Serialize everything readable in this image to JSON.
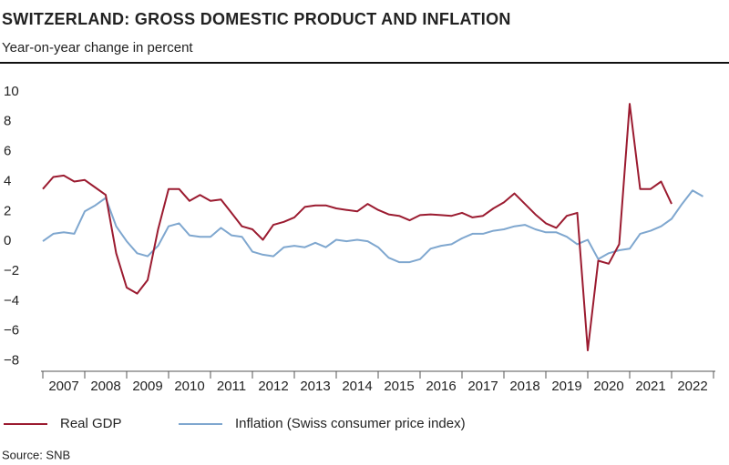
{
  "chart_data": {
    "type": "line",
    "title": "SWITZERLAND: GROSS DOMESTIC PRODUCT AND INFLATION",
    "subtitle": "Year-on-year change in percent",
    "source": "Source: SNB",
    "xlim": [
      2007,
      2023
    ],
    "xticks": [
      2007,
      2008,
      2009,
      2010,
      2011,
      2012,
      2013,
      2014,
      2015,
      2016,
      2017,
      2018,
      2019,
      2020,
      2021,
      2022
    ],
    "ylim": [
      -8.7,
      10.3
    ],
    "yticks": [
      {
        "value": -8,
        "label": "−8"
      },
      {
        "value": -6,
        "label": "−6"
      },
      {
        "value": -4,
        "label": "−4"
      },
      {
        "value": -2,
        "label": "−2"
      },
      0,
      2,
      4,
      6,
      8,
      10
    ],
    "grid": false,
    "legend": "bottom",
    "series": [
      {
        "name": "Real GDP",
        "color": "#9b1b30",
        "x": [
          2007,
          2007.25,
          2007.5,
          2007.75,
          2008,
          2008.25,
          2008.5,
          2008.75,
          2009,
          2009.25,
          2009.5,
          2009.75,
          2010,
          2010.25,
          2010.5,
          2010.75,
          2011,
          2011.25,
          2011.5,
          2011.75,
          2012,
          2012.25,
          2012.5,
          2012.75,
          2013,
          2013.25,
          2013.5,
          2013.75,
          2014,
          2014.25,
          2014.5,
          2014.75,
          2015,
          2015.25,
          2015.5,
          2015.75,
          2016,
          2016.25,
          2016.5,
          2016.75,
          2017,
          2017.25,
          2017.5,
          2017.75,
          2018,
          2018.25,
          2018.5,
          2018.75,
          2019,
          2019.25,
          2019.5,
          2019.75,
          2020,
          2020.25,
          2020.5,
          2020.75,
          2021,
          2021.25,
          2021.5,
          2021.75,
          2022
        ],
        "values": [
          3.5,
          4.3,
          4.4,
          4.0,
          4.1,
          3.6,
          3.1,
          -0.8,
          -3.1,
          -3.5,
          -2.6,
          0.8,
          3.5,
          3.5,
          2.7,
          3.1,
          2.7,
          2.8,
          1.9,
          1.0,
          0.8,
          0.1,
          1.1,
          1.3,
          1.6,
          2.3,
          2.4,
          2.4,
          2.2,
          2.1,
          2.0,
          2.5,
          2.1,
          1.8,
          1.7,
          1.4,
          1.75,
          1.8,
          1.75,
          1.7,
          1.9,
          1.6,
          1.7,
          2.2,
          2.6,
          3.2,
          2.5,
          1.8,
          1.2,
          0.9,
          1.7,
          1.9,
          -7.3,
          -1.3,
          -1.5,
          -0.2,
          9.2,
          3.5,
          3.5,
          4.0,
          2.5
        ]
      },
      {
        "name": "Inflation (Swiss consumer price index)",
        "color": "#7fa7cf",
        "x": [
          2007,
          2007.25,
          2007.5,
          2007.75,
          2008,
          2008.25,
          2008.5,
          2008.75,
          2009,
          2009.25,
          2009.5,
          2009.75,
          2010,
          2010.25,
          2010.5,
          2010.75,
          2011,
          2011.25,
          2011.5,
          2011.75,
          2012,
          2012.25,
          2012.5,
          2012.75,
          2013,
          2013.25,
          2013.5,
          2013.75,
          2014,
          2014.25,
          2014.5,
          2014.75,
          2015,
          2015.25,
          2015.5,
          2015.75,
          2016,
          2016.25,
          2016.5,
          2016.75,
          2017,
          2017.25,
          2017.5,
          2017.75,
          2018,
          2018.25,
          2018.5,
          2018.75,
          2019,
          2019.25,
          2019.5,
          2019.75,
          2020,
          2020.25,
          2020.5,
          2020.75,
          2021,
          2021.25,
          2021.5,
          2021.75,
          2022,
          2022.25,
          2022.5,
          2022.75
        ],
        "values": [
          0.0,
          0.5,
          0.6,
          0.5,
          2.0,
          2.4,
          2.9,
          1.0,
          0.0,
          -0.8,
          -1.0,
          -0.3,
          1.0,
          1.2,
          0.4,
          0.3,
          0.3,
          0.9,
          0.4,
          0.3,
          -0.7,
          -0.9,
          -1.0,
          -0.4,
          -0.3,
          -0.4,
          -0.1,
          -0.4,
          0.1,
          0.0,
          0.1,
          0.0,
          -0.4,
          -1.1,
          -1.4,
          -1.4,
          -1.2,
          -0.5,
          -0.3,
          -0.2,
          0.2,
          0.5,
          0.5,
          0.7,
          0.8,
          1.0,
          1.1,
          0.8,
          0.6,
          0.6,
          0.3,
          -0.2,
          0.1,
          -1.2,
          -0.8,
          -0.6,
          -0.5,
          0.5,
          0.7,
          1.0,
          1.5,
          2.5,
          3.4,
          3.0
        ]
      }
    ]
  }
}
